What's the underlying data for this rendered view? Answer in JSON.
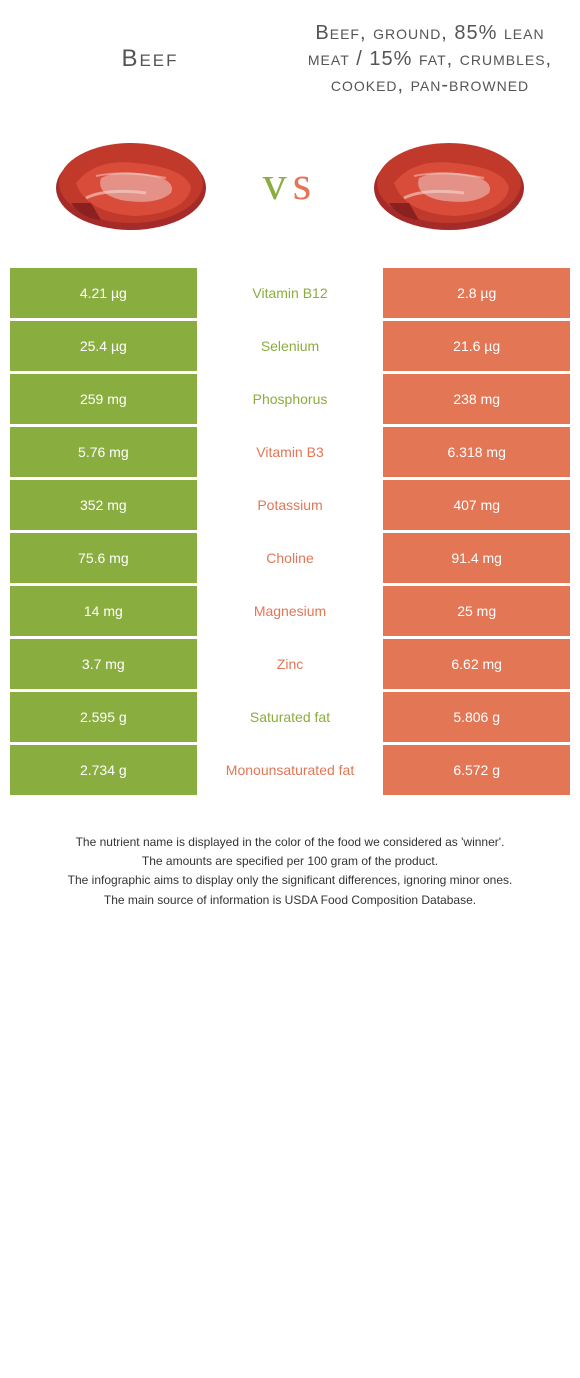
{
  "colors": {
    "left": "#8aad3f",
    "right": "#e37655",
    "background": "#ffffff",
    "title_text": "#555555"
  },
  "header": {
    "left_title": "Beef",
    "right_title": "Beef, ground, 85% lean meat / 15% fat, crumbles, cooked, pan-browned",
    "vs_v": "v",
    "vs_s": "s"
  },
  "rows": [
    {
      "left": "4.21 µg",
      "name": "Vitamin B12",
      "right": "2.8 µg",
      "winner": "left"
    },
    {
      "left": "25.4 µg",
      "name": "Selenium",
      "right": "21.6 µg",
      "winner": "left"
    },
    {
      "left": "259 mg",
      "name": "Phosphorus",
      "right": "238 mg",
      "winner": "left"
    },
    {
      "left": "5.76 mg",
      "name": "Vitamin B3",
      "right": "6.318 mg",
      "winner": "right"
    },
    {
      "left": "352 mg",
      "name": "Potassium",
      "right": "407 mg",
      "winner": "right"
    },
    {
      "left": "75.6 mg",
      "name": "Choline",
      "right": "91.4 mg",
      "winner": "right"
    },
    {
      "left": "14 mg",
      "name": "Magnesium",
      "right": "25 mg",
      "winner": "right"
    },
    {
      "left": "3.7 mg",
      "name": "Zinc",
      "right": "6.62 mg",
      "winner": "right"
    },
    {
      "left": "2.595 g",
      "name": "Saturated fat",
      "right": "5.806 g",
      "winner": "left"
    },
    {
      "left": "2.734 g",
      "name": "Monounsaturated fat",
      "right": "6.572 g",
      "winner": "right"
    }
  ],
  "footnotes": [
    "The nutrient name is displayed in the color of the food we considered as 'winner'.",
    "The amounts are specified per 100 gram of the product.",
    "The infographic aims to display only the significant differences, ignoring minor ones.",
    "The main source of information is USDA Food Composition Database."
  ],
  "typography": {
    "title_fontsize": 24,
    "title_right_fontsize": 20,
    "vs_fontsize": 48,
    "cell_fontsize": 14,
    "footnote_fontsize": 12
  }
}
